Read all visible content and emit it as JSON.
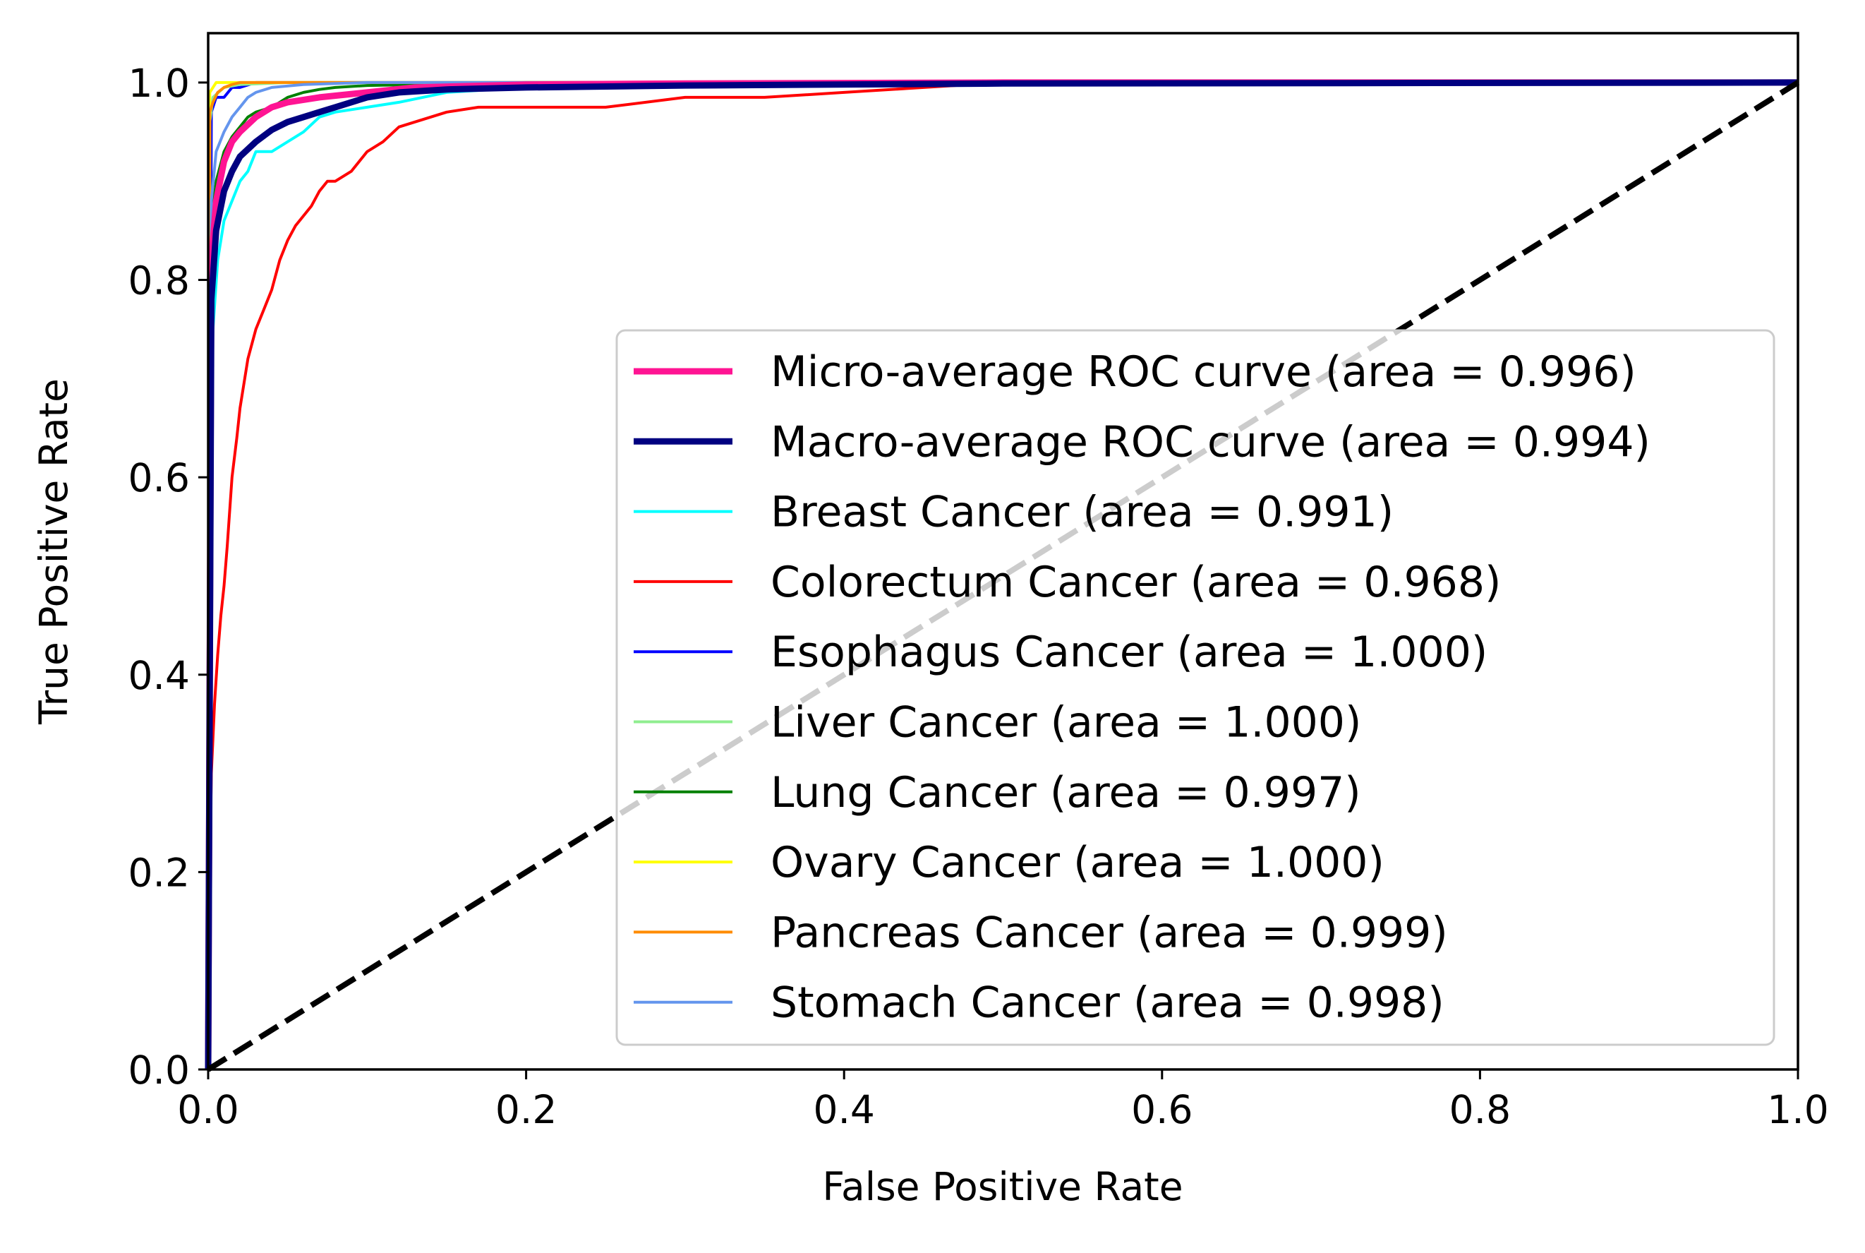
{
  "chart_data": {
    "type": "line",
    "title": "",
    "xlabel": "False Positive Rate",
    "ylabel": "True Positive Rate",
    "xlim": [
      0.0,
      1.0
    ],
    "ylim": [
      0.0,
      1.05
    ],
    "xticks": [
      "0.0",
      "0.2",
      "0.4",
      "0.6",
      "0.8",
      "1.0"
    ],
    "yticks": [
      "0.0",
      "0.2",
      "0.4",
      "0.6",
      "0.8",
      "1.0"
    ],
    "legend_position": "lower-right",
    "chance_line": {
      "x": [
        0,
        1
      ],
      "y": [
        0,
        1
      ],
      "color": "#000000",
      "style": "dashed"
    },
    "series": [
      {
        "name": "Micro-average ROC curve (area = 0.996)",
        "color": "#ff1493",
        "style": "thick",
        "x": [
          0,
          0.002,
          0.005,
          0.01,
          0.015,
          0.02,
          0.03,
          0.04,
          0.05,
          0.07,
          0.1,
          0.13,
          0.2,
          0.3,
          0.5,
          1.0
        ],
        "y": [
          0,
          0.82,
          0.88,
          0.92,
          0.94,
          0.95,
          0.965,
          0.975,
          0.98,
          0.985,
          0.99,
          0.995,
          0.998,
          0.999,
          1.0,
          1.0
        ]
      },
      {
        "name": "Macro-average ROC curve (area = 0.994)",
        "color": "#000080",
        "style": "thick",
        "x": [
          0,
          0.002,
          0.005,
          0.01,
          0.015,
          0.02,
          0.03,
          0.04,
          0.05,
          0.06,
          0.07,
          0.08,
          0.1,
          0.12,
          0.15,
          0.2,
          0.3,
          0.5,
          1.0
        ],
        "y": [
          0,
          0.78,
          0.85,
          0.89,
          0.91,
          0.925,
          0.94,
          0.952,
          0.96,
          0.965,
          0.97,
          0.975,
          0.985,
          0.99,
          0.993,
          0.995,
          0.997,
          0.999,
          1.0
        ]
      },
      {
        "name": "Breast Cancer (area = 0.991)",
        "color": "#00ffff",
        "style": "thin",
        "x": [
          0,
          0.001,
          0.003,
          0.006,
          0.01,
          0.015,
          0.02,
          0.025,
          0.03,
          0.04,
          0.05,
          0.06,
          0.07,
          0.08,
          0.1,
          0.12,
          0.15,
          0.2,
          0.3,
          1.0
        ],
        "y": [
          0,
          0.6,
          0.75,
          0.82,
          0.86,
          0.88,
          0.9,
          0.91,
          0.93,
          0.93,
          0.94,
          0.95,
          0.965,
          0.97,
          0.975,
          0.98,
          0.99,
          0.995,
          1.0,
          1.0
        ]
      },
      {
        "name": "Colorectum Cancer (area = 0.968)",
        "color": "#ff0000",
        "style": "thin",
        "x": [
          0,
          0.001,
          0.002,
          0.004,
          0.006,
          0.008,
          0.01,
          0.012,
          0.015,
          0.018,
          0.02,
          0.025,
          0.03,
          0.035,
          0.04,
          0.045,
          0.05,
          0.055,
          0.06,
          0.065,
          0.07,
          0.075,
          0.08,
          0.09,
          0.1,
          0.11,
          0.12,
          0.13,
          0.15,
          0.17,
          0.2,
          0.25,
          0.3,
          0.35,
          0.4,
          0.5,
          1.0
        ],
        "y": [
          0,
          0.2,
          0.3,
          0.37,
          0.42,
          0.46,
          0.49,
          0.53,
          0.6,
          0.64,
          0.67,
          0.72,
          0.75,
          0.77,
          0.79,
          0.82,
          0.84,
          0.855,
          0.865,
          0.875,
          0.89,
          0.9,
          0.9,
          0.91,
          0.93,
          0.94,
          0.955,
          0.96,
          0.97,
          0.975,
          0.975,
          0.975,
          0.985,
          0.985,
          0.99,
          1.0,
          1.0
        ]
      },
      {
        "name": "Esophagus Cancer (area = 1.000)",
        "color": "#0000ff",
        "style": "thin",
        "x": [
          0,
          0.002,
          0.005,
          0.01,
          0.015,
          0.02,
          0.03,
          0.05,
          1.0
        ],
        "y": [
          0,
          0.97,
          0.985,
          0.985,
          0.995,
          0.995,
          1.0,
          1.0,
          1.0
        ]
      },
      {
        "name": "Liver Cancer (area = 1.000)",
        "color": "#90ee90",
        "style": "thin",
        "x": [
          0,
          0.001,
          0.003,
          0.01,
          0.02,
          0.05,
          1.0
        ],
        "y": [
          0,
          0.96,
          0.985,
          0.995,
          0.998,
          1.0,
          1.0
        ]
      },
      {
        "name": "Lung Cancer (area = 0.997)",
        "color": "#008000",
        "style": "thin",
        "x": [
          0,
          0.002,
          0.005,
          0.01,
          0.015,
          0.02,
          0.025,
          0.03,
          0.04,
          0.05,
          0.06,
          0.07,
          0.08,
          0.1,
          0.2,
          1.0
        ],
        "y": [
          0,
          0.86,
          0.9,
          0.93,
          0.945,
          0.955,
          0.965,
          0.97,
          0.975,
          0.985,
          0.99,
          0.993,
          0.995,
          0.997,
          1.0,
          1.0
        ]
      },
      {
        "name": "Ovary Cancer (area = 1.000)",
        "color": "#ffff00",
        "style": "thin",
        "x": [
          0,
          0.001,
          0.005,
          0.02,
          1.0
        ],
        "y": [
          0,
          0.99,
          1.0,
          1.0,
          1.0
        ]
      },
      {
        "name": "Pancreas Cancer (area = 0.999)",
        "color": "#ff8c00",
        "style": "thin",
        "x": [
          0,
          0.001,
          0.003,
          0.006,
          0.01,
          0.015,
          0.02,
          1.0
        ],
        "y": [
          0,
          0.97,
          0.98,
          0.99,
          0.995,
          0.998,
          1.0,
          1.0
        ]
      },
      {
        "name": "Stomach Cancer (area = 0.998)",
        "color": "#6495ed",
        "style": "thin",
        "x": [
          0,
          0.002,
          0.005,
          0.01,
          0.015,
          0.02,
          0.025,
          0.03,
          0.04,
          0.06,
          0.1,
          1.0
        ],
        "y": [
          0,
          0.88,
          0.93,
          0.95,
          0.965,
          0.975,
          0.985,
          0.99,
          0.995,
          0.998,
          1.0,
          1.0
        ]
      }
    ]
  }
}
